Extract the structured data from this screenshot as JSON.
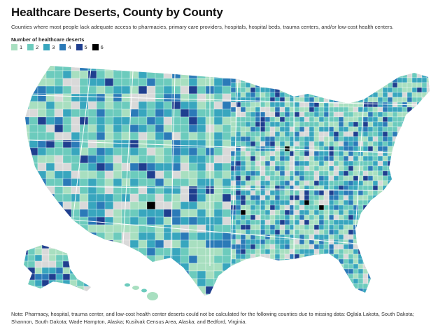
{
  "header": {
    "title": "Healthcare Deserts, County by County",
    "subtitle": "Counties where most people lack adequate access to pharmacies, primary care providers, hospitals, hospital beds, trauma centers, and/or low-cost health centers."
  },
  "legend": {
    "title": "Number of healthcare deserts",
    "items": [
      {
        "label": "1",
        "color": "#a8dfc0"
      },
      {
        "label": "2",
        "color": "#6ccbbd"
      },
      {
        "label": "3",
        "color": "#38a6be"
      },
      {
        "label": "4",
        "color": "#2b7ab8"
      },
      {
        "label": "5",
        "color": "#1f3f8f"
      },
      {
        "label": "6",
        "color": "#000000"
      }
    ],
    "no_data_color": "#d9d9d9"
  },
  "note": "Note: Pharmacy, hospital, trauma center, and low-cost health center deserts could not be calculated for the following counties due to missing data: Oglala Lakota, South Dakota; Shannon, South Dakota; Wade Hampton, Alaska; Kusilvak Census Area, Alaska; and Bedford, Virginia."
}
